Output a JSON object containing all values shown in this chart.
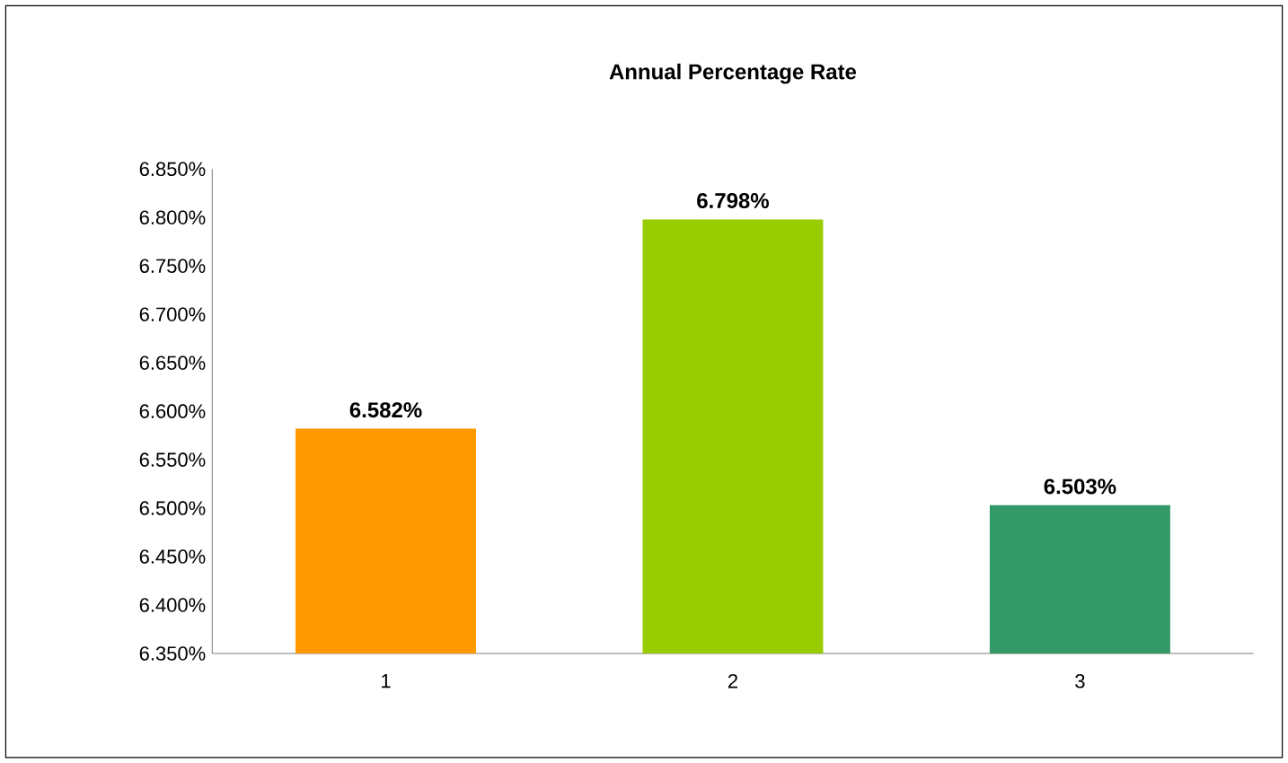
{
  "chart_data": {
    "type": "bar",
    "title": "Annual Percentage Rate",
    "categories": [
      "1",
      "2",
      "3"
    ],
    "values": [
      6.582,
      6.798,
      6.503
    ],
    "value_labels": [
      "6.582%",
      "6.798%",
      "6.503%"
    ],
    "colors": [
      "#ff9900",
      "#99cc00",
      "#339966"
    ],
    "ylim": [
      6.35,
      6.85
    ],
    "yticks": [
      {
        "value": 6.35,
        "label": "6.350%"
      },
      {
        "value": 6.4,
        "label": "6.400%"
      },
      {
        "value": 6.45,
        "label": "6.450%"
      },
      {
        "value": 6.5,
        "label": "6.500%"
      },
      {
        "value": 6.55,
        "label": "6.550%"
      },
      {
        "value": 6.6,
        "label": "6.600%"
      },
      {
        "value": 6.65,
        "label": "6.650%"
      },
      {
        "value": 6.7,
        "label": "6.700%"
      },
      {
        "value": 6.75,
        "label": "6.750%"
      },
      {
        "value": 6.8,
        "label": "6.800%"
      },
      {
        "value": 6.85,
        "label": "6.850%"
      }
    ]
  }
}
